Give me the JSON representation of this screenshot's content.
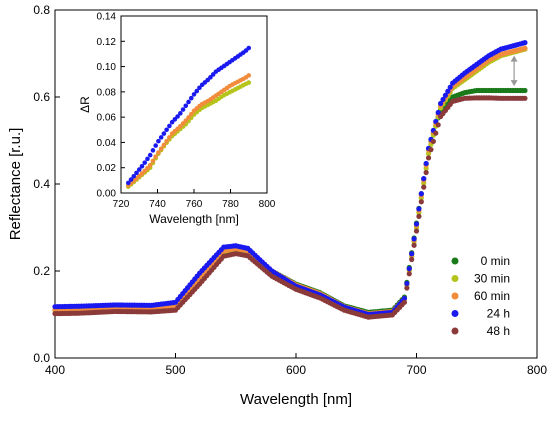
{
  "chart_data": [
    {
      "id": "main",
      "type": "scatter",
      "xlabel": "Wavelength [nm]",
      "ylabel": "Reflectance [r.u.]",
      "xlim": [
        400,
        800
      ],
      "ylim": [
        0,
        0.8
      ],
      "xticks": [
        400,
        500,
        600,
        700,
        800
      ],
      "yticks": [
        0.0,
        0.2,
        0.4,
        0.6,
        0.8
      ],
      "xtick_labels": [
        "400",
        "500",
        "600",
        "700",
        "800"
      ],
      "ytick_labels": [
        "0.0",
        "0.2",
        "0.4",
        "0.6",
        "0.8"
      ],
      "grid": false,
      "legend_position": "right",
      "annotation": "double-headed arrow near 790 nm",
      "series": [
        {
          "name": "0 min",
          "color": "#1a7a1a",
          "x": [
            400,
            420,
            450,
            480,
            500,
            520,
            540,
            550,
            560,
            580,
            600,
            620,
            640,
            660,
            680,
            690,
            700,
            710,
            720,
            730,
            740,
            750,
            760,
            770,
            790
          ],
          "y": [
            0.11,
            0.113,
            0.115,
            0.114,
            0.12,
            0.18,
            0.245,
            0.25,
            0.245,
            0.2,
            0.17,
            0.15,
            0.12,
            0.105,
            0.11,
            0.14,
            0.31,
            0.48,
            0.57,
            0.6,
            0.61,
            0.615,
            0.615,
            0.615,
            0.615
          ]
        },
        {
          "name": "30 min",
          "color": "#b5c41a",
          "x": [
            400,
            420,
            450,
            480,
            500,
            520,
            540,
            550,
            560,
            580,
            600,
            620,
            640,
            660,
            680,
            690,
            700,
            710,
            720,
            730,
            740,
            750,
            760,
            770,
            790
          ],
          "y": [
            0.11,
            0.112,
            0.114,
            0.113,
            0.118,
            0.178,
            0.242,
            0.248,
            0.243,
            0.195,
            0.165,
            0.145,
            0.115,
            0.1,
            0.105,
            0.135,
            0.3,
            0.47,
            0.575,
            0.62,
            0.64,
            0.66,
            0.68,
            0.695,
            0.71
          ]
        },
        {
          "name": "60 min",
          "color": "#f08c3c",
          "x": [
            400,
            420,
            450,
            480,
            500,
            520,
            540,
            550,
            560,
            580,
            600,
            620,
            640,
            660,
            680,
            690,
            700,
            710,
            720,
            730,
            740,
            750,
            760,
            770,
            790
          ],
          "y": [
            0.112,
            0.114,
            0.116,
            0.115,
            0.121,
            0.182,
            0.247,
            0.252,
            0.247,
            0.2,
            0.168,
            0.148,
            0.118,
            0.102,
            0.107,
            0.137,
            0.305,
            0.478,
            0.58,
            0.625,
            0.645,
            0.665,
            0.685,
            0.698,
            0.712
          ]
        },
        {
          "name": "24 h",
          "color": "#1a1af0",
          "x": [
            400,
            420,
            450,
            480,
            500,
            520,
            540,
            550,
            560,
            580,
            600,
            620,
            640,
            660,
            680,
            690,
            700,
            710,
            720,
            730,
            740,
            750,
            760,
            770,
            790
          ],
          "y": [
            0.118,
            0.119,
            0.122,
            0.121,
            0.128,
            0.195,
            0.255,
            0.258,
            0.252,
            0.2,
            0.165,
            0.145,
            0.117,
            0.1,
            0.105,
            0.137,
            0.308,
            0.482,
            0.585,
            0.632,
            0.655,
            0.675,
            0.695,
            0.71,
            0.725
          ]
        },
        {
          "name": "48 h",
          "color": "#8b3a3a",
          "x": [
            400,
            420,
            450,
            480,
            500,
            520,
            540,
            550,
            560,
            580,
            600,
            620,
            640,
            660,
            680,
            690,
            700,
            710,
            720,
            730,
            740,
            750,
            760,
            770,
            790
          ],
          "y": [
            0.102,
            0.103,
            0.107,
            0.106,
            0.11,
            0.17,
            0.234,
            0.24,
            0.235,
            0.188,
            0.158,
            0.138,
            0.11,
            0.094,
            0.099,
            0.128,
            0.292,
            0.46,
            0.555,
            0.59,
            0.597,
            0.598,
            0.598,
            0.597,
            0.597
          ]
        }
      ]
    },
    {
      "id": "inset",
      "type": "scatter",
      "xlabel": "Wavelength [nm]",
      "ylabel": "ΔR",
      "xlim": [
        720,
        800
      ],
      "ylim": [
        0,
        0.14
      ],
      "xticks": [
        720,
        740,
        760,
        780,
        800
      ],
      "yticks": [
        0.0,
        0.02,
        0.04,
        0.06,
        0.08,
        0.1,
        0.12,
        0.14
      ],
      "xtick_labels": [
        "720",
        "740",
        "760",
        "780",
        "800"
      ],
      "ytick_labels": [
        "0.00",
        "0.02",
        "0.04",
        "0.06",
        "0.08",
        "0.10",
        "0.12",
        "0.14"
      ],
      "grid": false,
      "series": [
        {
          "color": "#b5c41a",
          "x": [
            724,
            728,
            732,
            736,
            740,
            744,
            748,
            752,
            756,
            760,
            764,
            768,
            772,
            776,
            780,
            784,
            788,
            791
          ],
          "y": [
            0.005,
            0.01,
            0.015,
            0.02,
            0.03,
            0.038,
            0.045,
            0.05,
            0.055,
            0.062,
            0.067,
            0.07,
            0.073,
            0.077,
            0.08,
            0.083,
            0.086,
            0.088
          ]
        },
        {
          "color": "#f08c3c",
          "x": [
            724,
            728,
            732,
            736,
            740,
            744,
            748,
            752,
            756,
            760,
            764,
            768,
            772,
            776,
            780,
            784,
            788,
            791
          ],
          "y": [
            0.006,
            0.011,
            0.016,
            0.022,
            0.031,
            0.039,
            0.047,
            0.052,
            0.058,
            0.065,
            0.07,
            0.073,
            0.077,
            0.081,
            0.085,
            0.088,
            0.091,
            0.094
          ]
        },
        {
          "color": "#1a1af0",
          "x": [
            724,
            728,
            732,
            736,
            740,
            744,
            748,
            752,
            756,
            760,
            764,
            768,
            772,
            776,
            780,
            784,
            788,
            791
          ],
          "y": [
            0.008,
            0.015,
            0.022,
            0.03,
            0.04,
            0.048,
            0.056,
            0.062,
            0.07,
            0.078,
            0.085,
            0.09,
            0.096,
            0.1,
            0.104,
            0.108,
            0.112,
            0.116
          ]
        }
      ]
    }
  ]
}
